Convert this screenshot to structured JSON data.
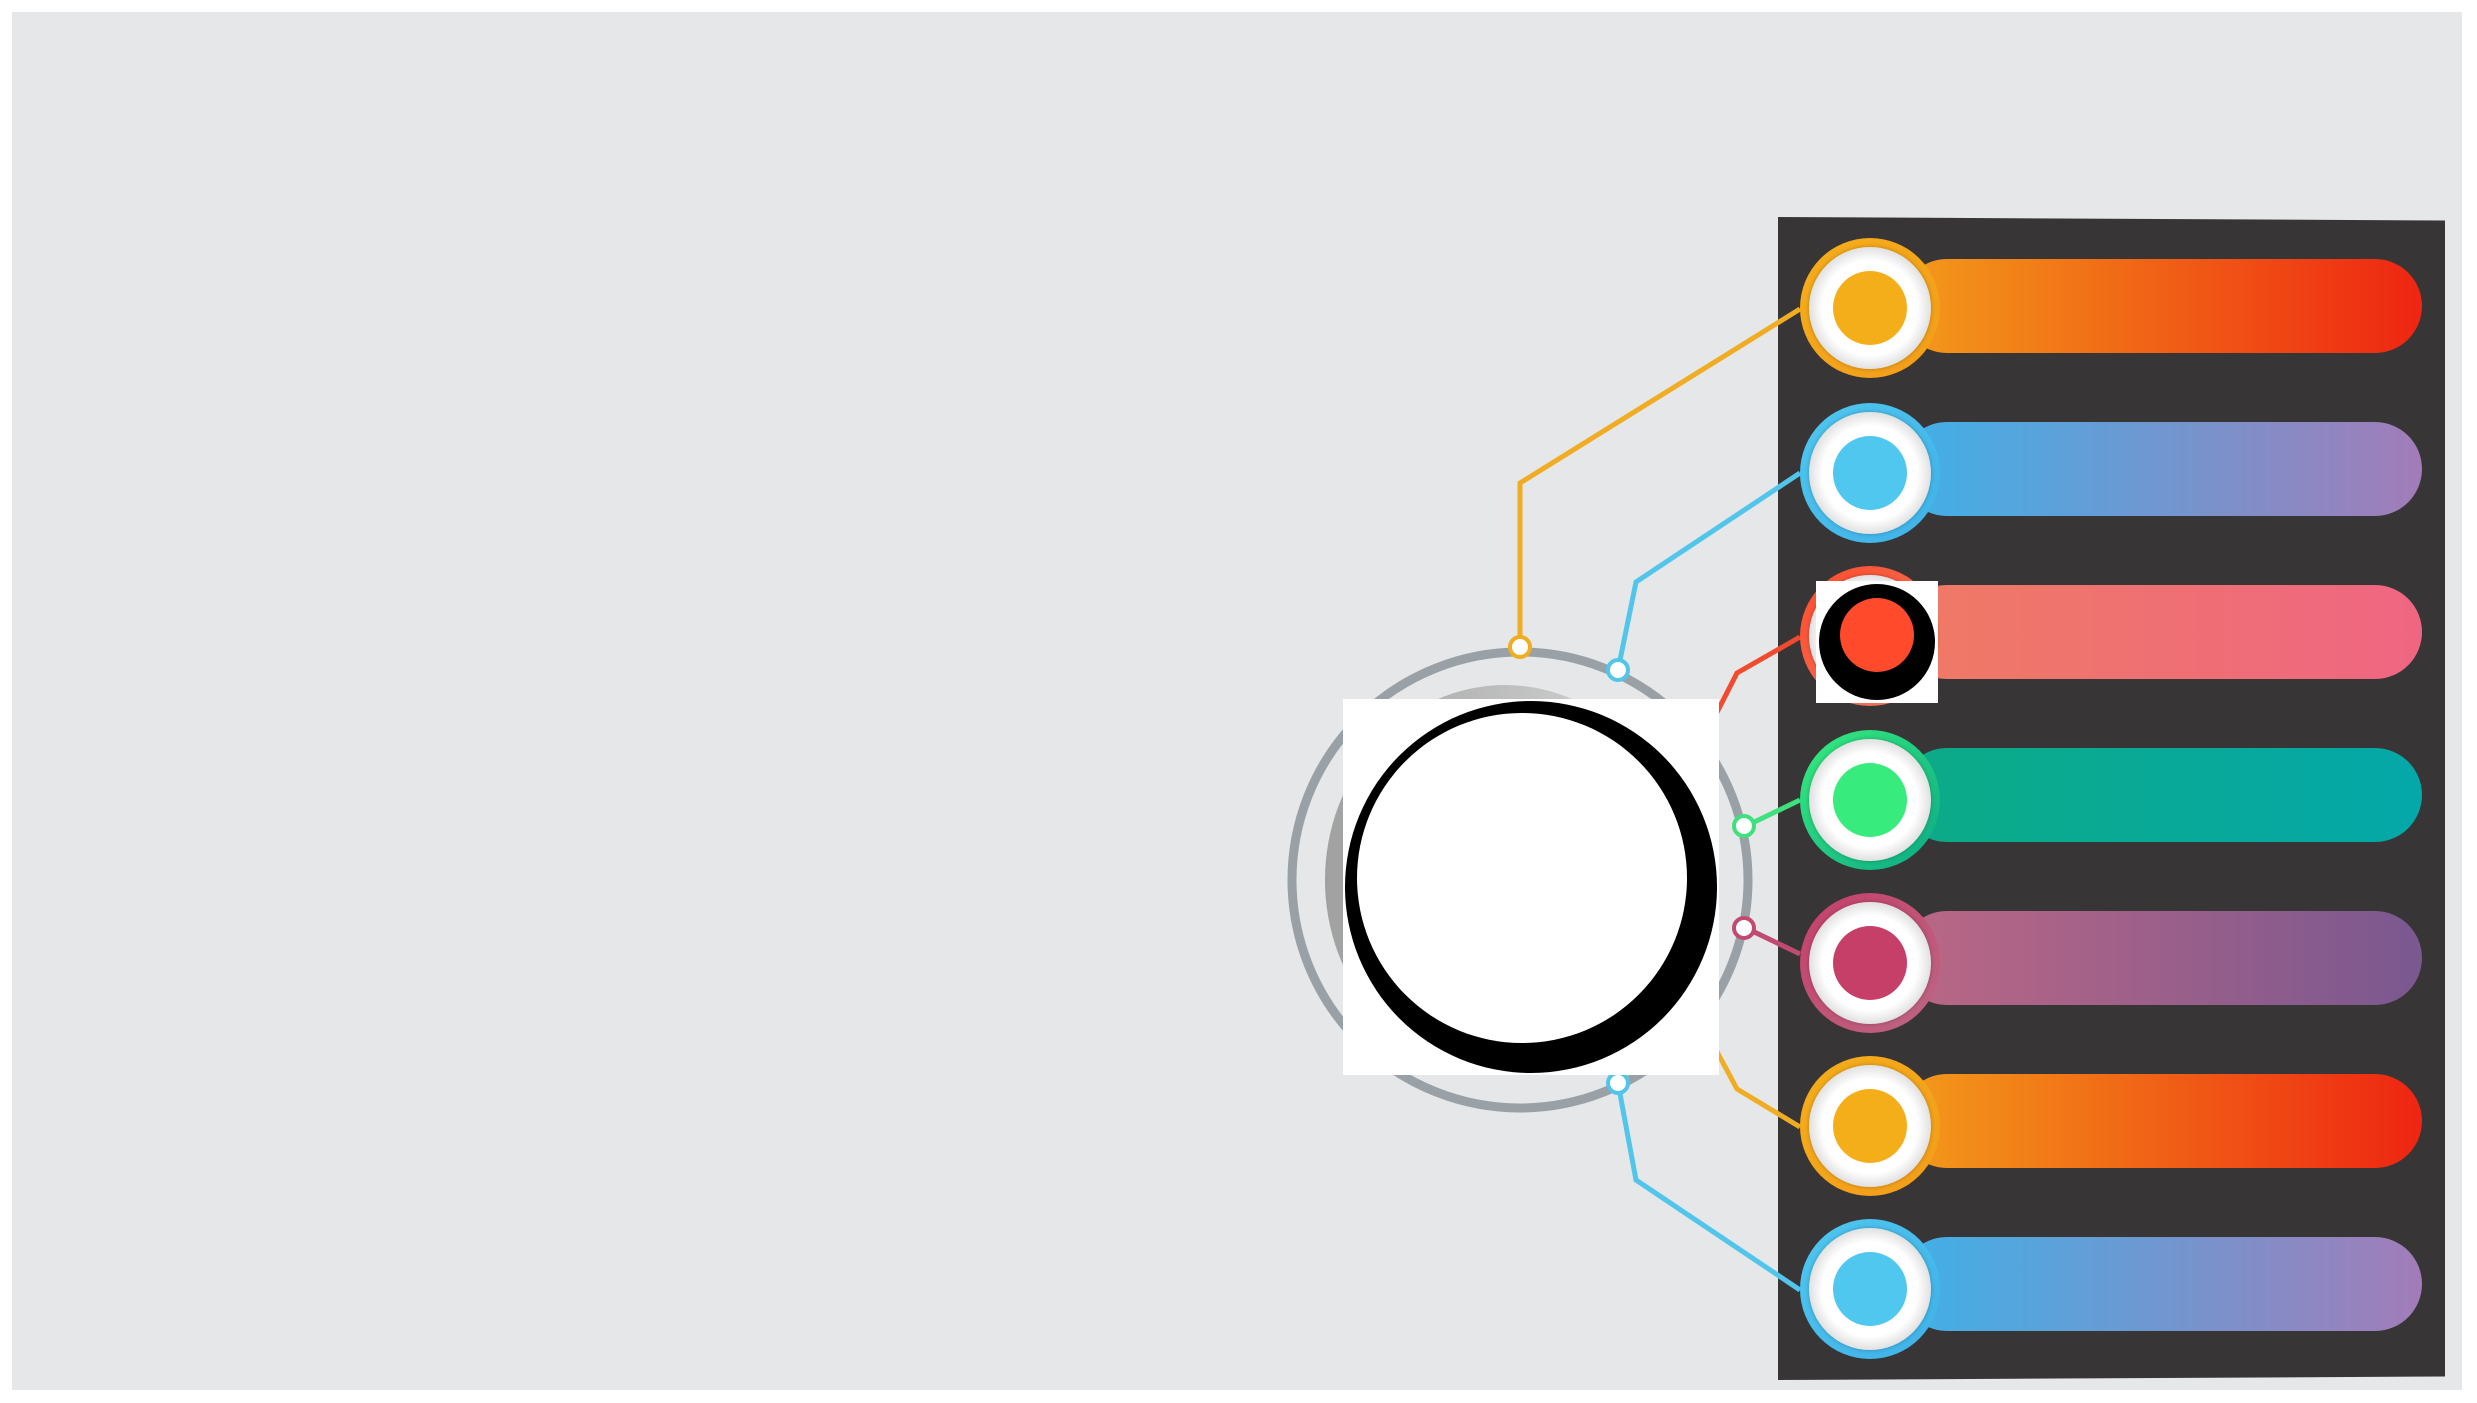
{
  "diagram": {
    "items": [
      {
        "id": "item-1",
        "accent": "#f4ae1a",
        "bar_from": "#f39c1a",
        "bar_to": "#ee2512"
      },
      {
        "id": "item-2",
        "accent": "#4fc7ef",
        "bar_from": "#3fb1e8",
        "bar_to": "#a27cb8"
      },
      {
        "id": "item-3",
        "accent": "#ff4b2b",
        "bar_from": "#ef7a64",
        "bar_to": "#ef6682"
      },
      {
        "id": "item-4",
        "accent": "#37ec7c",
        "bar_from": "#0caa86",
        "bar_to": "#05a8a9"
      },
      {
        "id": "item-5",
        "accent": "#c63f69",
        "bar_from": "#bc6784",
        "bar_to": "#7a5890"
      },
      {
        "id": "item-6",
        "accent": "#f4ae1a",
        "bar_from": "#f39c1a",
        "bar_to": "#ee2512"
      },
      {
        "id": "item-7",
        "accent": "#4fc7ef",
        "bar_from": "#3fb1e8",
        "bar_to": "#a27cb8"
      }
    ],
    "colors": {
      "background": "#e5e7e8",
      "panel": "#373535",
      "hub_ring": "#9aa1a6"
    }
  }
}
